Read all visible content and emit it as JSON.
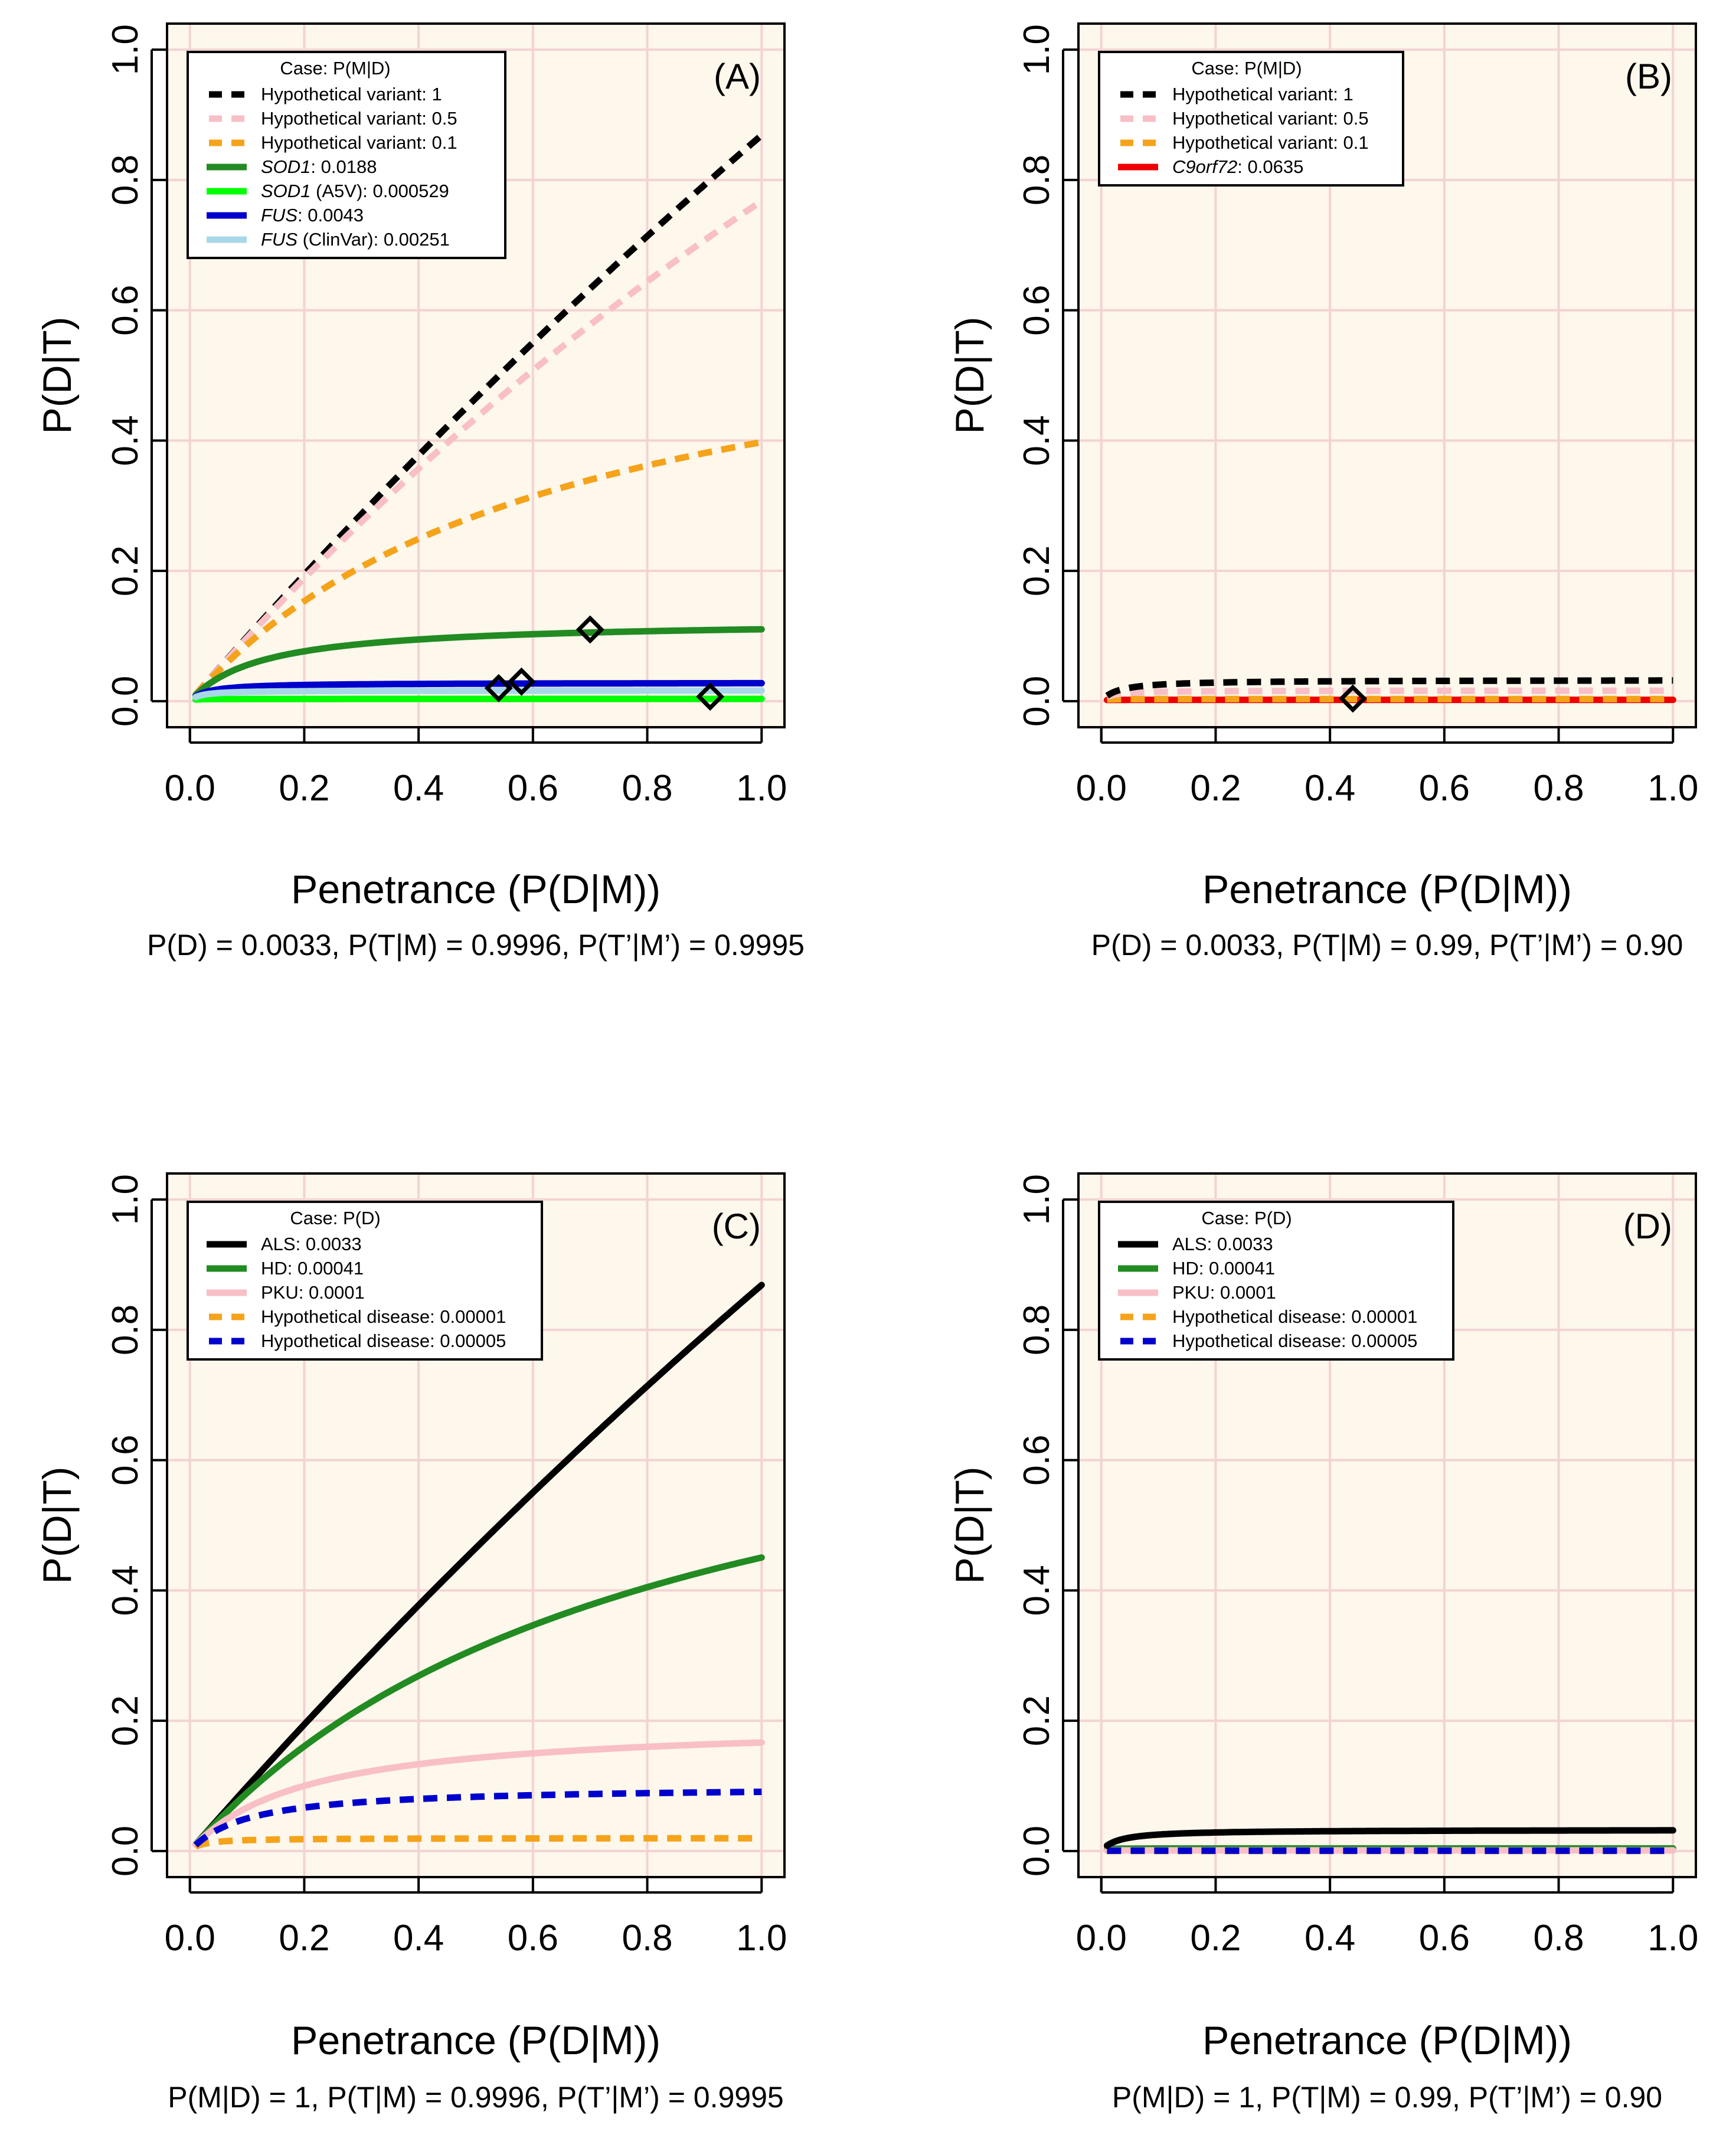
{
  "chart_data": [
    {
      "id": "A",
      "type": "line",
      "panel_label": "(A)",
      "xlabel": "Penetrance (P(D|M))",
      "ylabel": "P(D|T)",
      "caption": "P(D) = 0.0033, P(T|M) = 0.9996, P(T’|M’) = 0.9995",
      "xlim": [
        0,
        1
      ],
      "ylim": [
        0,
        1
      ],
      "xticks": [
        "0.0",
        "0.2",
        "0.4",
        "0.6",
        "0.8",
        "1.0"
      ],
      "yticks": [
        "0.0",
        "0.2",
        "0.4",
        "0.6",
        "0.8",
        "1.0"
      ],
      "legend": {
        "title": "Case: P(M|D)",
        "position": "top-left",
        "entries": [
          {
            "label": "Hypothetical variant: 1",
            "italic": "",
            "rest": "Hypothetical variant: 1",
            "color": "#000000",
            "dash": true
          },
          {
            "label": "Hypothetical variant: 0.5",
            "italic": "",
            "rest": "Hypothetical variant: 0.5",
            "color": "#f8bfc6",
            "dash": true
          },
          {
            "label": "Hypothetical variant: 0.1",
            "italic": "",
            "rest": "Hypothetical variant: 0.1",
            "color": "#f5a31a",
            "dash": true
          },
          {
            "label": "SOD1: 0.0188",
            "italic": "SOD1",
            "rest": ": 0.0188",
            "color": "#228b22",
            "dash": false
          },
          {
            "label": "SOD1 (A5V): 0.000529",
            "italic": "SOD1",
            "rest": " (A5V): 0.000529",
            "color": "#00ff00",
            "dash": false
          },
          {
            "label": "FUS: 0.0043",
            "italic": "FUS",
            "rest": ": 0.0043",
            "color": "#0000cc",
            "dash": false
          },
          {
            "label": "FUS (ClinVar): 0.00251",
            "italic": "FUS",
            "rest": " (ClinVar): 0.00251",
            "color": "#a8d8e8",
            "dash": false
          }
        ]
      },
      "series": [
        {
          "name": "Hypothetical variant: 1",
          "mmd": 1,
          "color": "#000000",
          "dash": true
        },
        {
          "name": "Hypothetical variant: 0.5",
          "mmd": 0.5,
          "color": "#f8bfc6",
          "dash": true
        },
        {
          "name": "Hypothetical variant: 0.1",
          "mmd": 0.1,
          "color": "#f5a31a",
          "dash": true
        },
        {
          "name": "SOD1: 0.0188",
          "mmd": 0.0188,
          "color": "#228b22",
          "dash": false
        },
        {
          "name": "SOD1 (A5V): 0.000529",
          "mmd": 0.000529,
          "color": "#00ff00",
          "dash": false
        },
        {
          "name": "FUS: 0.0043",
          "mmd": 0.0043,
          "color": "#0000cc",
          "dash": false
        },
        {
          "name": "FUS (ClinVar): 0.00251",
          "mmd": 0.00251,
          "color": "#a8d8e8",
          "dash": false
        }
      ],
      "params": {
        "pd": 0.0033,
        "ptm": 0.9996,
        "ptpmp": 0.9995
      },
      "markers": [
        {
          "x": 0.7,
          "y": 0.11
        },
        {
          "x": 0.54,
          "y": 0.02
        },
        {
          "x": 0.58,
          "y": 0.03
        },
        {
          "x": 0.91,
          "y": 0.007
        }
      ]
    },
    {
      "id": "B",
      "type": "line",
      "panel_label": "(B)",
      "xlabel": "Penetrance (P(D|M))",
      "ylabel": "P(D|T)",
      "caption": "P(D) = 0.0033, P(T|M) = 0.99, P(T’|M’) = 0.90",
      "xlim": [
        0,
        1
      ],
      "ylim": [
        0,
        1
      ],
      "xticks": [
        "0.0",
        "0.2",
        "0.4",
        "0.6",
        "0.8",
        "1.0"
      ],
      "yticks": [
        "0.0",
        "0.2",
        "0.4",
        "0.6",
        "0.8",
        "1.0"
      ],
      "legend": {
        "title": "Case: P(M|D)",
        "position": "top-left",
        "entries": [
          {
            "label": "Hypothetical variant: 1",
            "italic": "",
            "rest": "Hypothetical variant: 1",
            "color": "#000000",
            "dash": true
          },
          {
            "label": "Hypothetical variant: 0.5",
            "italic": "",
            "rest": "Hypothetical variant: 0.5",
            "color": "#f8bfc6",
            "dash": true
          },
          {
            "label": "Hypothetical variant: 0.1",
            "italic": "",
            "rest": "Hypothetical variant: 0.1",
            "color": "#f5a31a",
            "dash": true
          },
          {
            "label": "C9orf72: 0.0635",
            "italic": "C9orf72",
            "rest": ": 0.0635",
            "color": "#ee0000",
            "dash": false
          }
        ]
      },
      "series": [
        {
          "name": "C9orf72: 0.0635",
          "mmd": 0.0635,
          "color": "#ee0000",
          "dash": false
        },
        {
          "name": "Hypothetical variant: 0.1",
          "mmd": 0.1,
          "color": "#f5a31a",
          "dash": true
        },
        {
          "name": "Hypothetical variant: 0.5",
          "mmd": 0.5,
          "color": "#f8bfc6",
          "dash": true
        },
        {
          "name": "Hypothetical variant: 1",
          "mmd": 1,
          "color": "#000000",
          "dash": true
        }
      ],
      "params": {
        "pd": 0.0033,
        "ptm": 0.99,
        "ptpmp": 0.9
      },
      "markers": [
        {
          "x": 0.44,
          "y": 0.004
        }
      ]
    },
    {
      "id": "C",
      "type": "line",
      "panel_label": "(C)",
      "xlabel": "Penetrance (P(D|M))",
      "ylabel": "P(D|T)",
      "caption": "P(M|D) = 1, P(T|M) = 0.9996, P(T’|M’) = 0.9995",
      "xlim": [
        0,
        1
      ],
      "ylim": [
        0,
        1
      ],
      "xticks": [
        "0.0",
        "0.2",
        "0.4",
        "0.6",
        "0.8",
        "1.0"
      ],
      "yticks": [
        "0.0",
        "0.2",
        "0.4",
        "0.6",
        "0.8",
        "1.0"
      ],
      "legend": {
        "title": "Case: P(D)",
        "position": "top-left",
        "entries": [
          {
            "label": "ALS: 0.0033",
            "italic": "",
            "rest": "ALS: 0.0033",
            "color": "#000000",
            "dash": false
          },
          {
            "label": "HD: 0.00041",
            "italic": "",
            "rest": "HD: 0.00041",
            "color": "#228b22",
            "dash": false
          },
          {
            "label": "PKU: 0.0001",
            "italic": "",
            "rest": "PKU: 0.0001",
            "color": "#f8bfc6",
            "dash": false
          },
          {
            "label": "Hypothetical disease: 0.00001",
            "italic": "",
            "rest": "Hypothetical disease: 0.00001",
            "color": "#f5a31a",
            "dash": true
          },
          {
            "label": "Hypothetical disease: 0.00005",
            "italic": "",
            "rest": "Hypothetical disease: 0.00005",
            "color": "#0000cc",
            "dash": true
          }
        ]
      },
      "series": [
        {
          "name": "ALS: 0.0033",
          "pd": 0.0033,
          "color": "#000000",
          "dash": false
        },
        {
          "name": "HD: 0.00041",
          "pd": 0.00041,
          "color": "#228b22",
          "dash": false
        },
        {
          "name": "PKU: 0.0001",
          "pd": 0.0001,
          "color": "#f8bfc6",
          "dash": false
        },
        {
          "name": "Hypothetical disease: 0.00001",
          "pd": 1e-05,
          "color": "#f5a31a",
          "dash": true
        },
        {
          "name": "Hypothetical disease: 0.00005",
          "pd": 5e-05,
          "color": "#0000cc",
          "dash": true
        }
      ],
      "params": {
        "mmd": 1,
        "ptm": 0.9996,
        "ptpmp": 0.9995
      },
      "markers": []
    },
    {
      "id": "D",
      "type": "line",
      "panel_label": "(D)",
      "xlabel": "Penetrance (P(D|M))",
      "ylabel": "P(D|T)",
      "caption": "P(M|D) = 1, P(T|M) = 0.99, P(T’|M’) = 0.90",
      "xlim": [
        0,
        1
      ],
      "ylim": [
        0,
        1
      ],
      "xticks": [
        "0.0",
        "0.2",
        "0.4",
        "0.6",
        "0.8",
        "1.0"
      ],
      "yticks": [
        "0.0",
        "0.2",
        "0.4",
        "0.6",
        "0.8",
        "1.0"
      ],
      "legend": {
        "title": "Case: P(D)",
        "position": "top-left",
        "entries": [
          {
            "label": "ALS: 0.0033",
            "italic": "",
            "rest": "ALS: 0.0033",
            "color": "#000000",
            "dash": false
          },
          {
            "label": "HD: 0.00041",
            "italic": "",
            "rest": "HD: 0.00041",
            "color": "#228b22",
            "dash": false
          },
          {
            "label": "PKU: 0.0001",
            "italic": "",
            "rest": "PKU: 0.0001",
            "color": "#f8bfc6",
            "dash": false
          },
          {
            "label": "Hypothetical disease: 0.00001",
            "italic": "",
            "rest": "Hypothetical disease: 0.00001",
            "color": "#f5a31a",
            "dash": true
          },
          {
            "label": "Hypothetical disease: 0.00005",
            "italic": "",
            "rest": "Hypothetical disease: 0.00005",
            "color": "#0000cc",
            "dash": true
          }
        ]
      },
      "series": [
        {
          "name": "HD: 0.00041",
          "pd": 0.00041,
          "color": "#228b22",
          "dash": false
        },
        {
          "name": "PKU: 0.0001",
          "pd": 0.0001,
          "color": "#f8bfc6",
          "dash": false
        },
        {
          "name": "Hypothetical disease: 0.00001",
          "pd": 1e-05,
          "color": "#f5a31a",
          "dash": true
        },
        {
          "name": "Hypothetical disease: 0.00005",
          "pd": 5e-05,
          "color": "#0000cc",
          "dash": true
        },
        {
          "name": "ALS: 0.0033",
          "pd": 0.0033,
          "color": "#000000",
          "dash": false
        }
      ],
      "params": {
        "mmd": 1,
        "ptm": 0.99,
        "ptpmp": 0.9
      },
      "markers": []
    }
  ]
}
